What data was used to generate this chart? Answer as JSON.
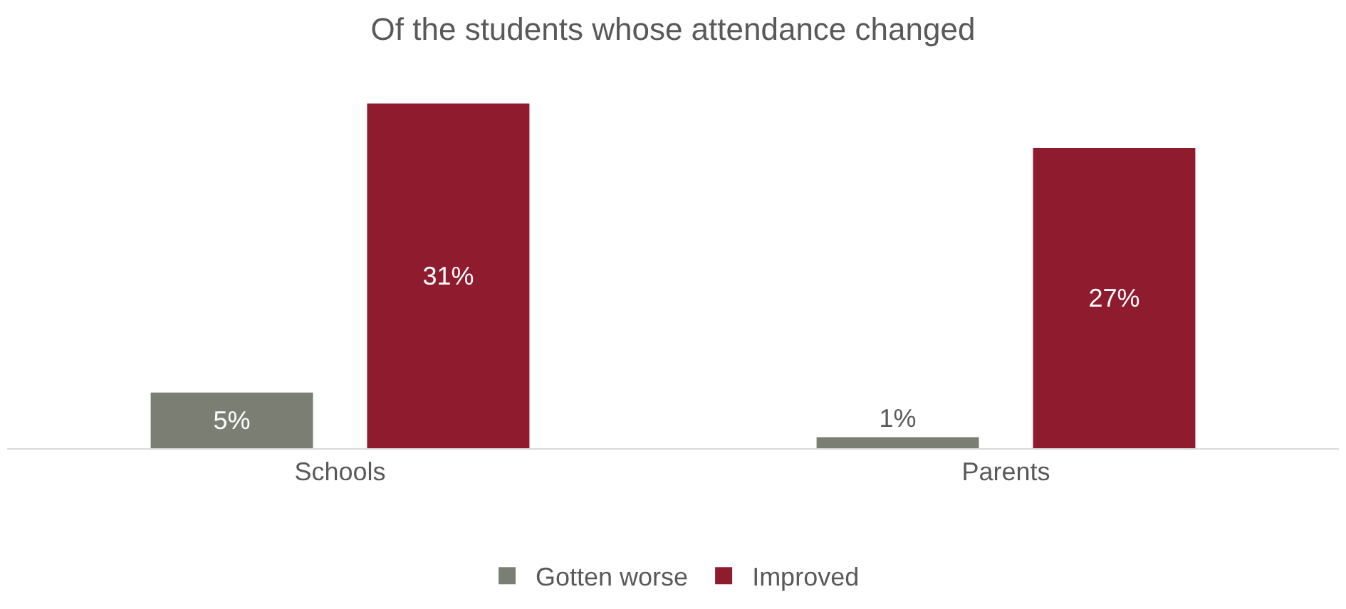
{
  "chart_data": {
    "type": "bar",
    "title": "Of the students whose attendance changed",
    "categories": [
      "Schools",
      "Parents"
    ],
    "series": [
      {
        "name": "Gotten worse",
        "color": "#7a7e73",
        "values": [
          5,
          1
        ],
        "value_labels": [
          "5%",
          "1%"
        ]
      },
      {
        "name": "Improved",
        "color": "#8f1b2f",
        "values": [
          31,
          27
        ],
        "value_labels": [
          "31%",
          "27%"
        ]
      }
    ],
    "legend": "bottom"
  }
}
